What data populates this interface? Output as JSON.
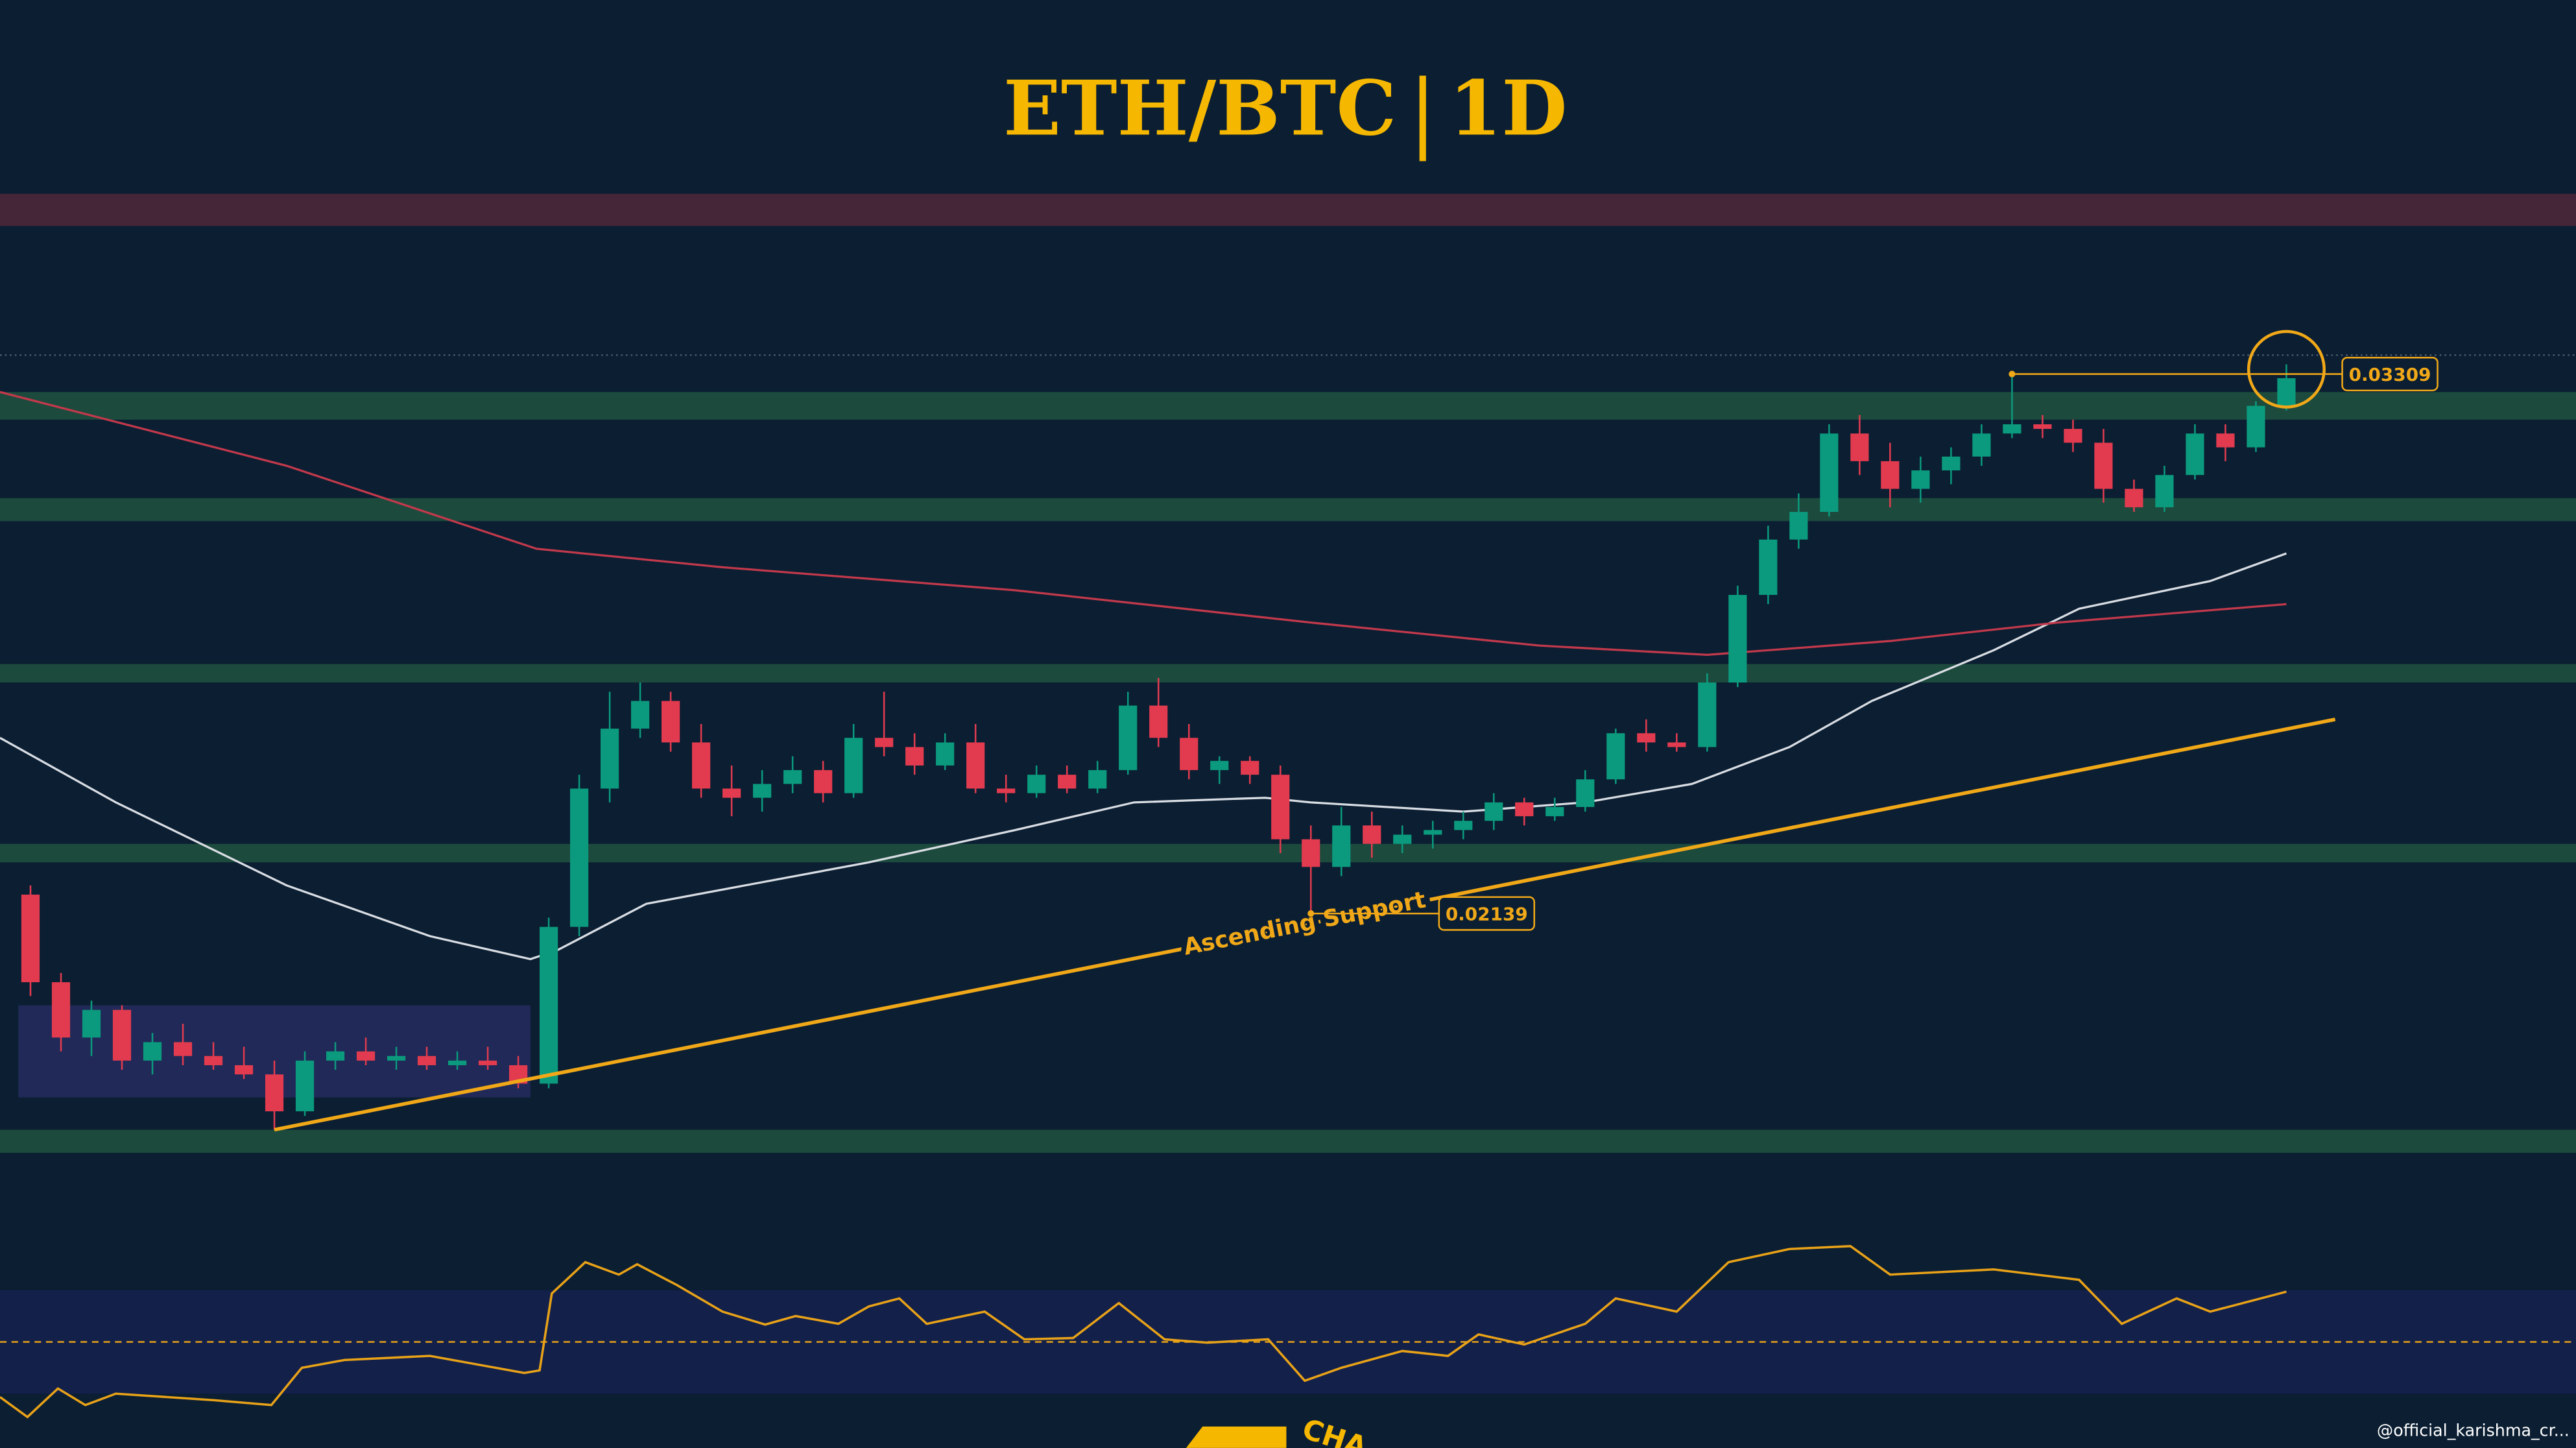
{
  "chart_data": {
    "type": "candlestick",
    "title": "ETH/BTC",
    "timeframe": "1D",
    "background": "#0b1e32",
    "xlim": [
      -1,
      83.5
    ],
    "ylim": [
      0.0098,
      0.0412
    ],
    "up_color": "#0b9a7d",
    "down_color": "#e23b4f",
    "open": [
      0.0218,
      0.0199,
      0.0187,
      0.0193,
      0.0182,
      0.0186,
      0.0183,
      0.0181,
      0.0179,
      0.0171,
      0.0182,
      0.0184,
      0.0182,
      0.0183,
      0.0181,
      0.0182,
      0.0181,
      0.0177,
      0.0211,
      0.0241,
      0.0254,
      0.026,
      0.0251,
      0.0241,
      0.0239,
      0.0242,
      0.0245,
      0.024,
      0.0252,
      0.025,
      0.0246,
      0.0251,
      0.0241,
      0.024,
      0.0244,
      0.0241,
      0.0245,
      0.0259,
      0.0252,
      0.0245,
      0.0247,
      0.0244,
      0.023,
      0.0224,
      0.0233,
      0.0229,
      0.0231,
      0.0232,
      0.0234,
      0.0238,
      0.0235,
      0.0237,
      0.0243,
      0.0253,
      0.0251,
      0.025,
      0.0264,
      0.0283,
      0.0295,
      0.0301,
      0.0318,
      0.0312,
      0.0306,
      0.031,
      0.0313,
      0.0318,
      0.032,
      0.0319,
      0.0316,
      0.0306,
      0.0302,
      0.0309,
      0.0318,
      0.0315,
      0.0324
    ],
    "high": [
      0.022,
      0.0201,
      0.0195,
      0.0194,
      0.0188,
      0.019,
      0.0186,
      0.0185,
      0.0182,
      0.0184,
      0.0186,
      0.0187,
      0.0185,
      0.0185,
      0.0184,
      0.0185,
      0.0183,
      0.0213,
      0.0244,
      0.0262,
      0.0264,
      0.0262,
      0.0255,
      0.0246,
      0.0245,
      0.0248,
      0.0247,
      0.0255,
      0.0262,
      0.0253,
      0.0253,
      0.0255,
      0.0244,
      0.0246,
      0.0246,
      0.0247,
      0.0262,
      0.0265,
      0.0255,
      0.0248,
      0.0248,
      0.0246,
      0.0233,
      0.0237,
      0.0236,
      0.0233,
      0.0234,
      0.0236,
      0.024,
      0.0239,
      0.0239,
      0.0245,
      0.0254,
      0.0256,
      0.0253,
      0.0266,
      0.0285,
      0.0298,
      0.0305,
      0.032,
      0.0322,
      0.0316,
      0.0313,
      0.0315,
      0.032,
      0.03309,
      0.0322,
      0.0321,
      0.0319,
      0.0308,
      0.0311,
      0.032,
      0.032,
      0.0325,
      0.0333
    ],
    "low": [
      0.0196,
      0.0184,
      0.0183,
      0.018,
      0.0179,
      0.0181,
      0.018,
      0.0178,
      0.0167,
      0.017,
      0.018,
      0.0181,
      0.018,
      0.018,
      0.018,
      0.018,
      0.0176,
      0.0176,
      0.0209,
      0.0238,
      0.0252,
      0.0249,
      0.0239,
      0.0235,
      0.0236,
      0.024,
      0.0238,
      0.0239,
      0.0248,
      0.0244,
      0.0245,
      0.024,
      0.0238,
      0.0239,
      0.024,
      0.024,
      0.0244,
      0.025,
      0.0243,
      0.0242,
      0.0242,
      0.0227,
      0.02139,
      0.0222,
      0.0226,
      0.0227,
      0.0228,
      0.023,
      0.0232,
      0.0233,
      0.0234,
      0.0236,
      0.0242,
      0.0249,
      0.0249,
      0.0249,
      0.0263,
      0.0281,
      0.0293,
      0.03,
      0.0309,
      0.0302,
      0.0303,
      0.0307,
      0.0311,
      0.0317,
      0.0317,
      0.0314,
      0.0303,
      0.0301,
      0.0301,
      0.0308,
      0.0312,
      0.0314,
      0.0323
    ],
    "close": [
      0.0199,
      0.0187,
      0.0193,
      0.0182,
      0.0186,
      0.0183,
      0.0181,
      0.0179,
      0.0171,
      0.0182,
      0.0184,
      0.0182,
      0.0183,
      0.0181,
      0.0182,
      0.0181,
      0.0177,
      0.0211,
      0.0241,
      0.0254,
      0.026,
      0.0251,
      0.0241,
      0.0239,
      0.0242,
      0.0245,
      0.024,
      0.0252,
      0.025,
      0.0246,
      0.0251,
      0.0241,
      0.024,
      0.0244,
      0.0241,
      0.0245,
      0.0259,
      0.0252,
      0.0245,
      0.0247,
      0.0244,
      0.023,
      0.0224,
      0.0233,
      0.0229,
      0.0231,
      0.0232,
      0.0234,
      0.0238,
      0.0235,
      0.0237,
      0.0243,
      0.0253,
      0.0251,
      0.025,
      0.0264,
      0.0283,
      0.0295,
      0.0301,
      0.0318,
      0.0312,
      0.0306,
      0.031,
      0.0313,
      0.0318,
      0.032,
      0.0319,
      0.0316,
      0.0306,
      0.0302,
      0.0309,
      0.0318,
      0.0315,
      0.0324,
      0.033
    ],
    "zones": [
      {
        "range": [
          0.0363,
          0.037
        ],
        "color": "#452538"
      },
      {
        "range": [
          0.0321,
          0.0327
        ],
        "color": "#1c4a3d"
      },
      {
        "range": [
          0.0299,
          0.0304
        ],
        "color": "#1c4a3d"
      },
      {
        "range": [
          0.0264,
          0.0268
        ],
        "color": "#1c4a3d"
      },
      {
        "range": [
          0.0225,
          0.0229
        ],
        "color": "#1c4a3d"
      },
      {
        "range": [
          0.0162,
          0.0167
        ],
        "color": "#1c4a3d"
      }
    ],
    "dotted_level": 0.0335,
    "range_box": {
      "x": [
        -0.4,
        16.4
      ],
      "y": [
        0.0174,
        0.0194
      ],
      "color": "#252b5e"
    },
    "lines": [
      {
        "color": "#d9dde3",
        "x": [
          -1,
          2.8,
          8.4,
          13.1,
          16.4,
          17.3,
          20.2,
          27.5,
          32.3,
          36.2,
          40.5,
          42,
          47,
          51,
          54.5,
          57.7,
          60.4,
          64.4,
          67.2,
          71.5,
          74
        ],
        "values": [
          0.0252,
          0.0238,
          0.022,
          0.0209,
          0.0204,
          0.0206,
          0.0216,
          0.0225,
          0.0232,
          0.0238,
          0.0239,
          0.0238,
          0.0236,
          0.0238,
          0.0242,
          0.025,
          0.026,
          0.0271,
          0.028,
          0.0286,
          0.0292
        ]
      },
      {
        "color": "#c2394b",
        "x": [
          -1,
          8.4,
          16.6,
          22.7,
          32.3,
          42,
          49.5,
          55,
          61,
          66.5,
          74
        ],
        "values": [
          0.0327,
          0.0311,
          0.0293,
          0.0289,
          0.0284,
          0.0277,
          0.0272,
          0.027,
          0.0273,
          0.0277,
          0.0281
        ]
      }
    ],
    "support": {
      "label": "Ascending Support",
      "x": [
        8,
        75.6
      ],
      "values": [
        0.0167,
        0.0256
      ],
      "color": "#f0a818"
    },
    "price_labels": [
      {
        "value": 0.03309,
        "x": 65
      },
      {
        "value": 0.02139,
        "x": 42
      }
    ],
    "rsi": {
      "ylim": [
        10,
        100
      ],
      "band": [
        30,
        70
      ],
      "midline": 50,
      "color": "#e8a218",
      "band_color": "#13204a",
      "x": [
        -1,
        -0.1,
        0.9,
        1.8,
        2.8,
        6.0,
        7.9,
        8.9,
        10.3,
        13.1,
        16.2,
        16.7,
        17.1,
        18.2,
        19.3,
        19.9,
        21.2,
        22.7,
        24.1,
        25.1,
        26.5,
        27.5,
        28.5,
        29.4,
        31.3,
        32.6,
        34.2,
        35.7,
        37.2,
        38.6,
        40.6,
        41.8,
        43,
        45,
        46.5,
        47.5,
        49,
        51,
        52,
        54,
        55.7,
        57.7,
        59.7,
        61,
        64.4,
        67.2,
        68.6,
        70.4,
        71.5,
        74
      ],
      "values": [
        28.7,
        21,
        32,
        25.6,
        30,
        27.5,
        25.6,
        40,
        43,
        44.6,
        38,
        39,
        68.7,
        80.8,
        76,
        80,
        72,
        61.7,
        56.7,
        60,
        57,
        63.7,
        66.8,
        57,
        61.7,
        51,
        51.5,
        65,
        51,
        49.7,
        51,
        35,
        40,
        46.5,
        44.6,
        52.9,
        49,
        57,
        66.8,
        61.7,
        80.8,
        85.9,
        87,
        76,
        78,
        74,
        57,
        66.8,
        61.7,
        69.4
      ]
    },
    "watermark": "@official_karishma_cr...",
    "logo_text": "CHA"
  }
}
